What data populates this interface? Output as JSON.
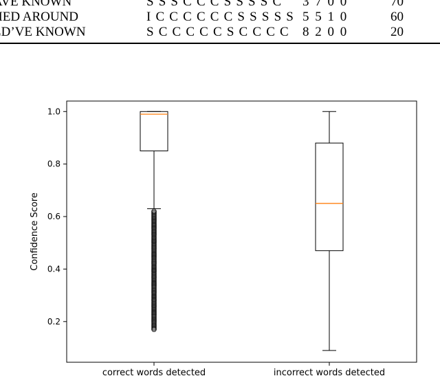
{
  "table_rows": [
    {
      "phrase": "AVE KNOWN",
      "sequence": "S S S C C C S S S S C",
      "counts": "3 7 0 0",
      "score": "70"
    },
    {
      "phrase": "HED AROUND",
      "sequence": "I C C C C C C S S S S S",
      "counts": "5 5 1 0",
      "score": "60"
    },
    {
      "phrase": "LD’VE KNOWN",
      "sequence": "S C C C C C S C C C C",
      "counts": "8 2 0 0",
      "score": "20"
    }
  ],
  "chart_data": {
    "type": "boxplot",
    "ylabel": "Confidence Score",
    "xlabel": "",
    "title": "",
    "ylim": [
      0.045,
      1.04
    ],
    "yticks": [
      "0.2",
      "0.4",
      "0.6",
      "0.8",
      "1.0"
    ],
    "categories": [
      "correct words detected",
      "incorrect words detected"
    ],
    "boxes": [
      {
        "label": "correct words detected",
        "whisker_low": 0.63,
        "q1": 0.85,
        "median": 0.99,
        "q3": 1.0,
        "whisker_high": 1.0,
        "outliers": [
          0.62,
          0.615,
          0.61,
          0.605,
          0.6,
          0.595,
          0.59,
          0.585,
          0.58,
          0.575,
          0.57,
          0.565,
          0.56,
          0.555,
          0.55,
          0.545,
          0.54,
          0.535,
          0.53,
          0.525,
          0.52,
          0.515,
          0.51,
          0.505,
          0.5,
          0.495,
          0.49,
          0.485,
          0.48,
          0.475,
          0.47,
          0.465,
          0.46,
          0.455,
          0.45,
          0.445,
          0.44,
          0.435,
          0.43,
          0.425,
          0.42,
          0.415,
          0.41,
          0.405,
          0.4,
          0.395,
          0.39,
          0.385,
          0.38,
          0.375,
          0.37,
          0.365,
          0.36,
          0.355,
          0.35,
          0.345,
          0.34,
          0.335,
          0.33,
          0.325,
          0.32,
          0.315,
          0.31,
          0.305,
          0.3,
          0.295,
          0.29,
          0.285,
          0.28,
          0.275,
          0.27,
          0.265,
          0.26,
          0.255,
          0.25,
          0.245,
          0.24,
          0.235,
          0.23,
          0.225,
          0.22,
          0.215,
          0.21,
          0.205,
          0.2,
          0.195,
          0.19,
          0.185,
          0.18,
          0.175,
          0.17
        ]
      },
      {
        "label": "incorrect words detected",
        "whisker_low": 0.09,
        "q1": 0.47,
        "median": 0.65,
        "q3": 0.88,
        "whisker_high": 1.0,
        "outliers": []
      }
    ],
    "colors": {
      "box": "#000000",
      "median": "#ff7f0e",
      "outlier": "#000000"
    }
  }
}
